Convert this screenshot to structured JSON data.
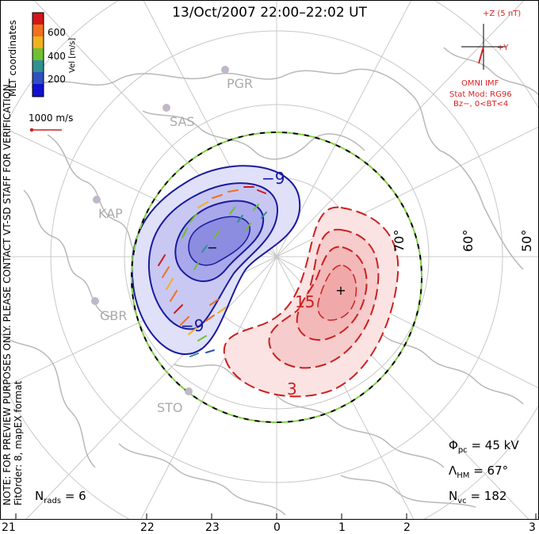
{
  "title": "13/Oct/2007 22:00–22:02 UT",
  "coords_label": "MLT coordinates",
  "colorbar": {
    "label": "Vel [m/s]",
    "ticks": [
      "600",
      "400",
      "200"
    ],
    "colors": [
      "#d01818",
      "#f07020",
      "#f0b020",
      "#70c030",
      "#309090",
      "#3050c0",
      "#1010d0"
    ]
  },
  "velocity_ref": "1000 m/s",
  "imf": {
    "scale": "+Z (5 nT)",
    "y_label": "+Y",
    "source": "OMNI IMF",
    "model_line1": "Stat Mod: RG96",
    "model_line2": "Bz−, 0<BT<4"
  },
  "stations": [
    "PGR",
    "SAS",
    "KAP",
    "GBR",
    "STO"
  ],
  "latitude_labels": [
    "70°",
    "60°",
    "50°"
  ],
  "contour_labels": {
    "negative": "−9",
    "negative_lower": "−9",
    "positive": "15",
    "positive_lower": "3"
  },
  "cell_marks": {
    "minus": "−",
    "plus": "+"
  },
  "mlt_axis": [
    "21",
    "22",
    "23",
    "0",
    "1",
    "2",
    "3"
  ],
  "stats": {
    "phi_pc_label": "Φ",
    "phi_pc_sub": "pc",
    "phi_pc_value": "= 45 kV",
    "lambda_label": "Λ",
    "lambda_sub": "HM",
    "lambda_value": "= 67°",
    "nvc_label": "N",
    "nvc_sub": "vc",
    "nvc_value": "= 182",
    "nrads_label": "N",
    "nrads_sub": "rads",
    "nrads_value": "= 6"
  },
  "note_line1": "NOTE: FOR PREVIEW PURPOSES ONLY. PLEASE CONTACT VT-SD STAFF FOR VERIFICATION.",
  "note_line2": "FitOrder: 8, mapEX format",
  "colors": {
    "negative_cell": "#8080e0",
    "positive_cell": "#f09090",
    "neg_contour": "#1a1aa0",
    "pos_contour": "#cc2020",
    "grid": "#c8c8c8",
    "coast": "#b8b8b8",
    "boundary_green": "#80d040"
  }
}
